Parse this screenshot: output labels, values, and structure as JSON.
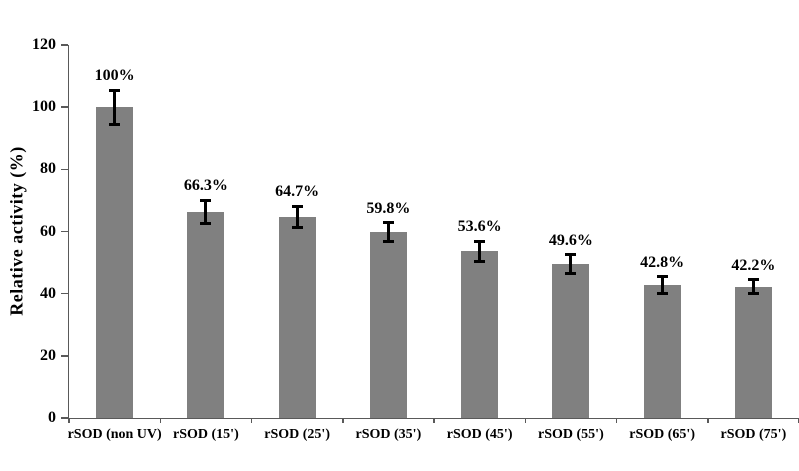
{
  "figure": {
    "background": "#ffffff"
  },
  "chart_data": {
    "type": "bar",
    "title": "",
    "xlabel": "",
    "ylabel": "Relative activity (%)",
    "ylim": [
      0,
      120
    ],
    "yticks": [
      0,
      20,
      40,
      60,
      80,
      100,
      120
    ],
    "grid": false,
    "legend": null,
    "categories": [
      "rSOD (non UV)",
      "rSOD (15')",
      "rSOD (25')",
      "rSOD (35')",
      "rSOD (45')",
      "rSOD (55')",
      "rSOD (65')",
      "rSOD (75')"
    ],
    "values": [
      100,
      66.3,
      64.7,
      59.8,
      53.6,
      49.6,
      42.8,
      42.2
    ],
    "value_labels": [
      "100%",
      "66.3%",
      "64.7%",
      "59.8%",
      "53.6%",
      "49.6%",
      "42.8%",
      "42.2%"
    ],
    "errors": [
      5.5,
      3.7,
      3.5,
      3.0,
      3.3,
      3.0,
      2.6,
      2.3
    ],
    "bar_color": "#808080",
    "error_bar_color": "#000000",
    "axis_color": "#595959",
    "text_color": "#000000"
  }
}
